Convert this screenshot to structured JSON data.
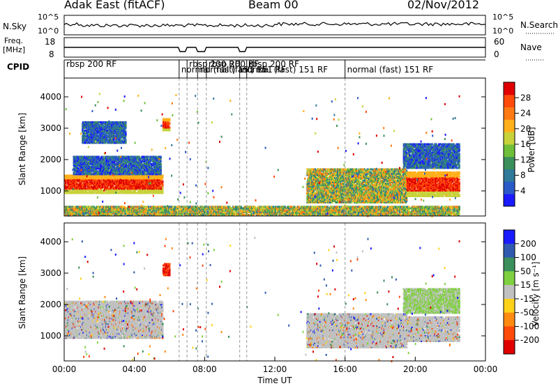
{
  "header": {
    "radar": "Adak East (fitACF)",
    "beam": "Beam 00",
    "date": "02/Nov/2012"
  },
  "top_panels": {
    "sky_label": "N.Sky",
    "sky_ticks": [
      "10^5",
      "10^0"
    ],
    "search_label": "N.Search",
    "search_ticks": [
      "10^5",
      "10^0"
    ],
    "freq_label_1": "Freq.",
    "freq_label_2": "[MHz]",
    "freq_ticks": [
      "18",
      "8"
    ],
    "nave_label": "Nave",
    "nave_ticks": [
      "60",
      "0"
    ],
    "cpid_label": "CPID"
  },
  "cpid_segments": [
    {
      "label": "rbsp 200 RF",
      "start_h": 0.0,
      "end_h": 6.55
    },
    {
      "label": "normal (fast) 151 RF",
      "start_h": 6.55,
      "end_h": 7.0
    },
    {
      "label": "rbsp 200 RF",
      "start_h": 7.0,
      "end_h": 7.6
    },
    {
      "label": "normal (fast) 151 RF",
      "start_h": 7.6,
      "end_h": 8.1
    },
    {
      "label": "rbsp 200 RF",
      "start_h": 8.1,
      "end_h": 10.0
    },
    {
      "label": "normal (fast) 151 RF",
      "start_h": 10.0,
      "end_h": 10.4
    },
    {
      "label": "rbsp 200 RF",
      "start_h": 10.4,
      "end_h": 16.0
    },
    {
      "label": "normal (fast) 151 RF",
      "start_h": 16.0,
      "end_h": 24.0
    }
  ],
  "chart_data": [
    {
      "type": "heatmap",
      "name": "power",
      "xlabel": "",
      "ylabel": "Slant Range [km]",
      "xlim": [
        0,
        24
      ],
      "ylim": [
        200,
        4600
      ],
      "yticks": [
        1000,
        2000,
        3000,
        4000
      ],
      "colorbar": {
        "label": "Power [dB]",
        "ticks": [
          "4",
          "8",
          "12",
          "16",
          "20",
          "24",
          "28"
        ],
        "colors": [
          "#1a1aff",
          "#2a5ac8",
          "#2f7a9a",
          "#3a8f5a",
          "#6fbf3a",
          "#c8d23a",
          "#ffb01a",
          "#ff7a12",
          "#ff4a0a",
          "#e00000"
        ]
      },
      "echo_regions": [
        {
          "t0": 0.0,
          "t1": 5.6,
          "r0": 900,
          "r1": 1500,
          "level": "high"
        },
        {
          "t0": 0.5,
          "t1": 5.5,
          "r0": 1500,
          "r1": 2100,
          "level": "low"
        },
        {
          "t0": 1.0,
          "t1": 3.5,
          "r0": 2500,
          "r1": 3200,
          "level": "low"
        },
        {
          "t0": 5.6,
          "t1": 6.0,
          "r0": 2900,
          "r1": 3300,
          "level": "high"
        },
        {
          "t0": 13.8,
          "t1": 19.5,
          "r0": 600,
          "r1": 1700,
          "level": "mid"
        },
        {
          "t0": 19.5,
          "t1": 22.5,
          "r0": 800,
          "r1": 1600,
          "level": "high"
        },
        {
          "t0": 19.3,
          "t1": 22.5,
          "r0": 1700,
          "r1": 2500,
          "level": "low"
        },
        {
          "t0": 0.0,
          "t1": 22.5,
          "r0": 200,
          "r1": 500,
          "level": "mid"
        }
      ]
    },
    {
      "type": "heatmap",
      "name": "velocity",
      "xlabel": "Time UT",
      "ylabel": "Slant Range [km]",
      "xlim": [
        0,
        24
      ],
      "ylim": [
        200,
        4600
      ],
      "xticks": [
        "00:00",
        "04:00",
        "08:00",
        "12:00",
        "16:00",
        "20:00",
        "00:00"
      ],
      "yticks": [
        1000,
        2000,
        3000,
        4000
      ],
      "colorbar": {
        "label": "Velocity [m s⁻¹]",
        "ticks": [
          "200",
          "100",
          "50",
          "15",
          "-15",
          "-50",
          "-100",
          "-200"
        ],
        "colors": [
          "#1a1aff",
          "#2f5ab0",
          "#3a8f5a",
          "#7fd040",
          "#c0c0c0",
          "#ffd21a",
          "#ff8a12",
          "#ff4a0a",
          "#e00000"
        ]
      },
      "echo_regions": [
        {
          "t0": 0.0,
          "t1": 5.6,
          "r0": 900,
          "r1": 2100,
          "level": "ground"
        },
        {
          "t0": 5.6,
          "t1": 6.0,
          "r0": 2900,
          "r1": 3300,
          "level": "neg"
        },
        {
          "t0": 13.8,
          "t1": 19.5,
          "r0": 600,
          "r1": 1700,
          "level": "ground"
        },
        {
          "t0": 19.5,
          "t1": 22.5,
          "r0": 800,
          "r1": 1600,
          "level": "ground"
        },
        {
          "t0": 19.3,
          "t1": 22.5,
          "r0": 1700,
          "r1": 2500,
          "level": "pos"
        }
      ]
    }
  ]
}
